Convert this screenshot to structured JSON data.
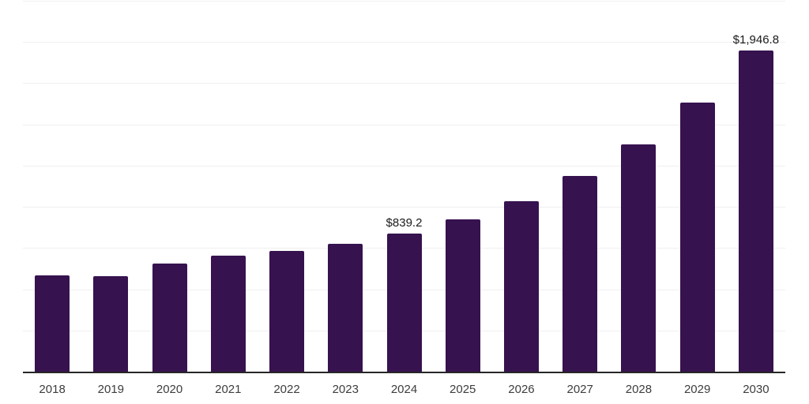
{
  "chart_data": {
    "type": "bar",
    "title": "",
    "xlabel": "",
    "ylabel": "",
    "categories": [
      "2018",
      "2019",
      "2020",
      "2021",
      "2022",
      "2023",
      "2024",
      "2025",
      "2026",
      "2027",
      "2028",
      "2029",
      "2030"
    ],
    "values": [
      585,
      580,
      655,
      703,
      731,
      775,
      839.2,
      923,
      1034,
      1187,
      1379,
      1633,
      1946.8
    ],
    "currency_prefix": "$",
    "data_labels": {
      "2024": "$839.2",
      "2030": "$1,946.8"
    },
    "ylim": [
      0,
      2250
    ],
    "gridline_step": 250,
    "grid": "horizontal",
    "legend": "none",
    "y_axis_labels_visible": false
  },
  "style": {
    "bar_color": "#36124f",
    "gridline_color": "#f0f0f0",
    "axis_line_color": "#262626",
    "x_label_color": "#3d3d3d",
    "data_label_color": "#1a1a1a",
    "background": "#ffffff"
  }
}
